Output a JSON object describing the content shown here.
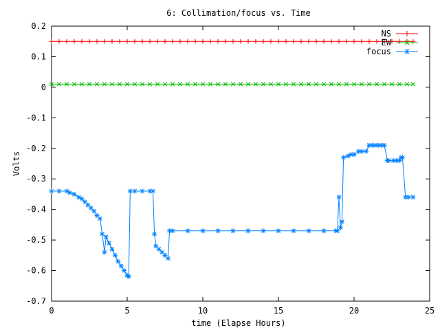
{
  "chart_data": {
    "type": "line",
    "title": "6: Collimation/focus vs. Time",
    "xlabel": "time (Elapse Hours)",
    "ylabel": "Volts",
    "xlim": [
      0,
      25
    ],
    "ylim": [
      -0.7,
      0.2
    ],
    "xticks": [
      0,
      5,
      10,
      15,
      20,
      25
    ],
    "xtick_labels": [
      "0",
      "5",
      "10",
      "15",
      "20",
      "25"
    ],
    "yticks": [
      0.2,
      0.1,
      0,
      -0.1,
      -0.2,
      -0.3,
      -0.4,
      -0.5,
      -0.6,
      -0.7
    ],
    "ytick_labels": [
      "0.2",
      "0.1",
      "0",
      "-0.1",
      "-0.2",
      "-0.3",
      "-0.4",
      "-0.5",
      "-0.6",
      "-0.7"
    ],
    "grid": false,
    "legend_position": "top-right",
    "series": [
      {
        "name": "NS",
        "color": "#ff0000",
        "marker": "plus",
        "x": [
          0,
          0.5,
          1,
          1.5,
          2,
          2.5,
          3,
          3.5,
          4,
          4.5,
          5,
          5.5,
          6,
          6.5,
          7,
          7.5,
          8,
          8.5,
          9,
          9.5,
          10,
          10.5,
          11,
          11.5,
          12,
          12.5,
          13,
          13.5,
          14,
          14.5,
          15,
          15.5,
          16,
          16.5,
          17,
          17.5,
          18,
          18.5,
          19,
          19.5,
          20,
          20.5,
          21,
          21.5,
          22,
          22.5,
          23,
          23.5,
          23.9
        ],
        "y": [
          0.15,
          0.15,
          0.15,
          0.15,
          0.15,
          0.15,
          0.15,
          0.15,
          0.15,
          0.15,
          0.15,
          0.15,
          0.15,
          0.15,
          0.15,
          0.15,
          0.15,
          0.15,
          0.15,
          0.15,
          0.15,
          0.15,
          0.15,
          0.15,
          0.15,
          0.15,
          0.15,
          0.15,
          0.15,
          0.15,
          0.15,
          0.15,
          0.15,
          0.15,
          0.15,
          0.15,
          0.15,
          0.15,
          0.15,
          0.15,
          0.15,
          0.15,
          0.15,
          0.15,
          0.15,
          0.15,
          0.15,
          0.15,
          0.15
        ]
      },
      {
        "name": "EW",
        "color": "#00c000",
        "marker": "cross",
        "x": [
          0,
          0.5,
          1,
          1.5,
          2,
          2.5,
          3,
          3.5,
          4,
          4.5,
          5,
          5.5,
          6,
          6.5,
          7,
          7.5,
          8,
          8.5,
          9,
          9.5,
          10,
          10.5,
          11,
          11.5,
          12,
          12.5,
          13,
          13.5,
          14,
          14.5,
          15,
          15.5,
          16,
          16.5,
          17,
          17.5,
          18,
          18.5,
          19,
          19.5,
          20,
          20.5,
          21,
          21.5,
          22,
          22.5,
          23,
          23.5,
          23.9
        ],
        "y": [
          0.01,
          0.01,
          0.01,
          0.01,
          0.01,
          0.01,
          0.01,
          0.01,
          0.01,
          0.01,
          0.01,
          0.01,
          0.01,
          0.01,
          0.01,
          0.01,
          0.01,
          0.01,
          0.01,
          0.01,
          0.01,
          0.01,
          0.01,
          0.01,
          0.01,
          0.01,
          0.01,
          0.01,
          0.01,
          0.01,
          0.01,
          0.01,
          0.01,
          0.01,
          0.01,
          0.01,
          0.01,
          0.01,
          0.01,
          0.01,
          0.01,
          0.01,
          0.01,
          0.01,
          0.01,
          0.01,
          0.01,
          0.01,
          0.01
        ]
      },
      {
        "name": "focus",
        "color": "#0080ff",
        "marker": "star",
        "x": [
          0,
          0.5,
          1,
          1.2,
          1.5,
          1.8,
          2.0,
          2.2,
          2.4,
          2.6,
          2.8,
          3.0,
          3.2,
          3.35,
          3.5,
          3.6,
          3.8,
          4.0,
          4.2,
          4.4,
          4.6,
          4.8,
          5.0,
          5.1,
          5.2,
          5.5,
          6.0,
          6.5,
          6.7,
          6.8,
          6.9,
          7.1,
          7.3,
          7.5,
          7.7,
          7.8,
          8.0,
          9,
          10,
          11,
          12,
          13,
          14,
          15,
          16,
          17,
          18,
          18.8,
          18.9,
          19.0,
          19.1,
          19.2,
          19.3,
          19.6,
          19.8,
          20.0,
          20.3,
          20.5,
          20.8,
          21.0,
          21.2,
          21.4,
          21.6,
          21.8,
          22.0,
          22.2,
          22.3,
          22.6,
          22.8,
          23.0,
          23.1,
          23.2,
          23.4,
          23.6,
          23.9
        ],
        "y": [
          -0.34,
          -0.34,
          -0.34,
          -0.345,
          -0.35,
          -0.36,
          -0.365,
          -0.375,
          -0.385,
          -0.395,
          -0.405,
          -0.42,
          -0.43,
          -0.48,
          -0.54,
          -0.49,
          -0.51,
          -0.53,
          -0.55,
          -0.57,
          -0.585,
          -0.6,
          -0.615,
          -0.62,
          -0.34,
          -0.34,
          -0.34,
          -0.34,
          -0.34,
          -0.48,
          -0.52,
          -0.53,
          -0.54,
          -0.55,
          -0.56,
          -0.47,
          -0.47,
          -0.47,
          -0.47,
          -0.47,
          -0.47,
          -0.47,
          -0.47,
          -0.47,
          -0.47,
          -0.47,
          -0.47,
          -0.47,
          -0.47,
          -0.36,
          -0.46,
          -0.44,
          -0.23,
          -0.225,
          -0.22,
          -0.22,
          -0.21,
          -0.21,
          -0.21,
          -0.19,
          -0.19,
          -0.19,
          -0.19,
          -0.19,
          -0.19,
          -0.24,
          -0.24,
          -0.24,
          -0.24,
          -0.24,
          -0.23,
          -0.23,
          -0.36,
          -0.36,
          -0.36
        ]
      }
    ]
  }
}
